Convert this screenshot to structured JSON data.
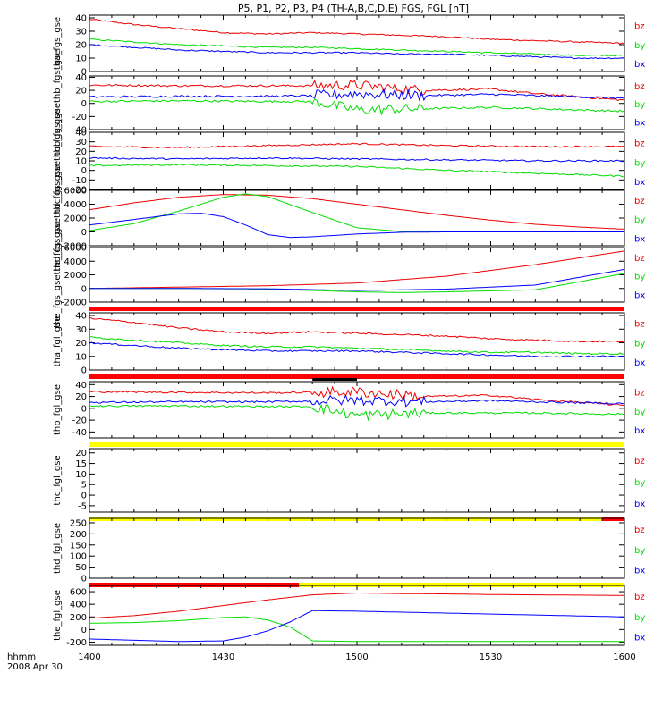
{
  "page": {
    "title": "P5, P1, P2, P3, P4 (TH-A,B,C,D,E) FGS, FGL [nT]",
    "time_axis_label": "hhmm",
    "date_label": "2008 Apr 30"
  },
  "colors": {
    "bx": "#0000ff",
    "by": "#00dd00",
    "bz": "#ee0000",
    "flag_red": "#ff0000",
    "flag_yellow": "#ffff00",
    "flag_black": "#000000"
  },
  "chart_data": {
    "type": "line",
    "x_ticks": [
      "1400",
      "1430",
      "1500",
      "1530",
      "1600"
    ],
    "x_range_minutes": [
      0,
      120
    ],
    "legend_labels": [
      "bz",
      "by",
      "bx"
    ],
    "panels": [
      {
        "id": "tha_fgs_gse",
        "ylabel": "tha_fgs_gse",
        "ylim": [
          0,
          42
        ],
        "ticks": [
          "40",
          "30",
          "20",
          "10",
          "0"
        ],
        "tick_values": [
          40,
          30,
          20,
          10,
          0
        ],
        "noise": 0.5,
        "flags": [],
        "series": [
          {
            "name": "bz",
            "x": [
              0,
              10,
              20,
              30,
              40,
              50,
              60,
              70,
              80,
              90,
              100,
              110,
              120
            ],
            "y": [
              39,
              35,
              32,
              29,
              28,
              29,
              28,
              27,
              26,
              24,
              23,
              22,
              21
            ]
          },
          {
            "name": "by",
            "x": [
              0,
              10,
              20,
              30,
              40,
              50,
              60,
              70,
              80,
              90,
              100,
              110,
              120
            ],
            "y": [
              24,
              22,
              20,
              19,
              18,
              18,
              17,
              16,
              15,
              14,
              13,
              12,
              12
            ]
          },
          {
            "name": "bx",
            "x": [
              0,
              10,
              20,
              30,
              40,
              50,
              60,
              70,
              80,
              90,
              100,
              110,
              120
            ],
            "y": [
              20,
              18,
              16,
              15,
              14,
              14,
              14,
              13,
              13,
              12,
              11,
              10,
              10
            ]
          }
        ]
      },
      {
        "id": "thb_fgs_gsethb_fgs_gse",
        "ylabel": "thb_fgs_gsethb_fgs_gse",
        "ylim": [
          -40,
          42
        ],
        "ticks": [
          "40",
          "20",
          "0",
          "-20",
          "-40"
        ],
        "tick_values": [
          40,
          20,
          0,
          -20,
          -40
        ],
        "noise": 1.5,
        "noisy_range": [
          50,
          75,
          8
        ],
        "flags": [],
        "series": [
          {
            "name": "bz",
            "x": [
              0,
              20,
              40,
              50,
              60,
              75,
              90,
              100,
              120
            ],
            "y": [
              28,
              27,
              27,
              27,
              28,
              20,
              22,
              15,
              5
            ]
          },
          {
            "name": "by",
            "x": [
              0,
              20,
              40,
              50,
              60,
              75,
              90,
              100,
              120
            ],
            "y": [
              3,
              4,
              3,
              3,
              -10,
              -8,
              -6,
              -8,
              -12
            ]
          },
          {
            "name": "bx",
            "x": [
              0,
              20,
              40,
              50,
              60,
              75,
              90,
              100,
              120
            ],
            "y": [
              10,
              11,
              11,
              12,
              15,
              12,
              14,
              12,
              8
            ]
          }
        ]
      },
      {
        "id": "thc_fgs_gsethc_fgs_gse",
        "ylabel": "thc_fgs_gsethc_fgs_gse",
        "ylim": [
          -20,
          40
        ],
        "ticks": [
          "40",
          "30",
          "20",
          "10",
          "0",
          "-10",
          "-20"
        ],
        "tick_values": [
          40,
          30,
          20,
          10,
          0,
          -10,
          -20
        ],
        "noise": 0.8,
        "flags": [],
        "series": [
          {
            "name": "bz",
            "x": [
              0,
              20,
              40,
              60,
              80,
              100,
              120
            ],
            "y": [
              25,
              24,
              26,
              28,
              26,
              25,
              25
            ]
          },
          {
            "name": "by",
            "x": [
              0,
              20,
              40,
              60,
              80,
              100,
              120
            ],
            "y": [
              5,
              6,
              5,
              4,
              0,
              -3,
              -6
            ]
          },
          {
            "name": "bx",
            "x": [
              0,
              20,
              40,
              60,
              80,
              100,
              120
            ],
            "y": [
              13,
              12,
              13,
              12,
              11,
              10,
              10
            ]
          }
        ]
      },
      {
        "id": "thd_fgs_gsethd_fgs_gse",
        "ylabel": "thd_fgs_gsethd_fgs_gse",
        "ylim": [
          -2000,
          6000
        ],
        "ticks": [
          "6000",
          "4000",
          "2000",
          "0",
          "-2000"
        ],
        "tick_values": [
          6000,
          4000,
          2000,
          0,
          -2000
        ],
        "noise": 0,
        "flags": [],
        "series": [
          {
            "name": "bz",
            "x": [
              0,
              10,
              20,
              30,
              40,
              50,
              60,
              70,
              80,
              90,
              100,
              110,
              120
            ],
            "y": [
              3200,
              4200,
              5000,
              5400,
              5300,
              4800,
              4000,
              3200,
              2400,
              1700,
              1100,
              700,
              400
            ]
          },
          {
            "name": "by",
            "x": [
              0,
              10,
              20,
              30,
              35,
              40,
              50,
              60,
              70,
              80
            ],
            "y": [
              200,
              1200,
              3000,
              5000,
              5500,
              5100,
              2800,
              600,
              50,
              0
            ]
          },
          {
            "name": "bx",
            "x": [
              0,
              10,
              20,
              25,
              30,
              35,
              40,
              45,
              50,
              60,
              70,
              80
            ],
            "y": [
              1000,
              1800,
              2600,
              2700,
              2200,
              1000,
              -400,
              -800,
              -700,
              -300,
              -50,
              0
            ]
          }
        ]
      },
      {
        "id": "the_fgs_gsethe_fgs_gse",
        "ylabel": "the_fgs_gsethe_fgs_gse",
        "ylim": [
          -2000,
          6000
        ],
        "ticks": [
          "6000",
          "4000",
          "2000",
          "0",
          "-2000"
        ],
        "tick_values": [
          6000,
          4000,
          2000,
          0,
          -2000
        ],
        "noise": 0,
        "flags": [
          {
            "color": "flag_red",
            "x": [
              0,
              120
            ]
          }
        ],
        "series": [
          {
            "name": "bz",
            "x": [
              0,
              20,
              40,
              60,
              80,
              100,
              120
            ],
            "y": [
              0,
              200,
              400,
              800,
              1800,
              3500,
              5500
            ]
          },
          {
            "name": "by",
            "x": [
              0,
              20,
              40,
              60,
              70,
              80,
              100,
              120
            ],
            "y": [
              0,
              0,
              -100,
              -500,
              -600,
              -500,
              -200,
              2200
            ]
          },
          {
            "name": "bx",
            "x": [
              0,
              20,
              40,
              60,
              70,
              80,
              100,
              120
            ],
            "y": [
              0,
              0,
              -50,
              -300,
              -200,
              -100,
              500,
              2800
            ]
          }
        ]
      },
      {
        "id": "tha_fgl_gse",
        "ylabel": "tha_fgl_gse",
        "ylim": [
          0,
          42
        ],
        "ticks": [
          "40",
          "30",
          "20",
          "10",
          "0"
        ],
        "tick_values": [
          40,
          30,
          20,
          10,
          0
        ],
        "noise": 0.6,
        "flags": [
          {
            "color": "flag_red",
            "x": [
              0,
              120
            ]
          }
        ],
        "series": [
          {
            "name": "bz",
            "x": [
              0,
              10,
              20,
              30,
              40,
              50,
              60,
              70,
              80,
              90,
              100,
              110,
              120
            ],
            "y": [
              38,
              35,
              31,
              28,
              27,
              28,
              27,
              26,
              25,
              23,
              22,
              21,
              21
            ]
          },
          {
            "name": "by",
            "x": [
              0,
              10,
              20,
              30,
              40,
              50,
              60,
              70,
              80,
              90,
              100,
              110,
              120
            ],
            "y": [
              24,
              22,
              20,
              18,
              17,
              17,
              16,
              15,
              14,
              13,
              13,
              12,
              12
            ]
          },
          {
            "name": "bx",
            "x": [
              0,
              10,
              20,
              30,
              40,
              50,
              60,
              70,
              80,
              90,
              100,
              110,
              120
            ],
            "y": [
              20,
              18,
              16,
              15,
              14,
              14,
              14,
              13,
              12,
              11,
              10,
              10,
              10
            ]
          }
        ]
      },
      {
        "id": "thb_fgl_gse",
        "ylabel": "thb_fgl_gse",
        "ylim": [
          -50,
          45
        ],
        "ticks": [
          "40",
          "20",
          "0",
          "-20",
          "-40"
        ],
        "tick_values": [
          40,
          20,
          0,
          -20,
          -40
        ],
        "noise": 1.5,
        "noisy_range": [
          50,
          75,
          9
        ],
        "flags": [
          {
            "color": "flag_yellow",
            "x": [
              0,
              120
            ]
          },
          {
            "color": "flag_black",
            "x": [
              50,
              60
            ],
            "top": true
          }
        ],
        "series": [
          {
            "name": "bz",
            "x": [
              0,
              20,
              40,
              50,
              60,
              75,
              90,
              100,
              120
            ],
            "y": [
              28,
              27,
              26,
              27,
              28,
              20,
              22,
              15,
              5
            ]
          },
          {
            "name": "by",
            "x": [
              0,
              20,
              40,
              50,
              60,
              75,
              90,
              100,
              120
            ],
            "y": [
              4,
              4,
              3,
              3,
              -12,
              -8,
              -8,
              -8,
              -10
            ]
          },
          {
            "name": "bx",
            "x": [
              0,
              20,
              40,
              50,
              60,
              75,
              90,
              100,
              120
            ],
            "y": [
              10,
              11,
              11,
              12,
              14,
              11,
              13,
              11,
              8
            ]
          }
        ]
      },
      {
        "id": "thc_fgl_gse",
        "ylabel": "thc_fgl_gse",
        "ylim": [
          -8,
          22
        ],
        "ticks": [
          "20",
          "15",
          "10",
          "5",
          "0",
          "-5"
        ],
        "tick_values": [
          20,
          15,
          10,
          5,
          0,
          -5
        ],
        "noise": 0,
        "flags": [
          {
            "color": "flag_yellow",
            "x": [
              0,
              115
            ]
          },
          {
            "color": "flag_red",
            "x": [
              115,
              120
            ]
          }
        ],
        "series": []
      },
      {
        "id": "thd_fgl_gse",
        "ylabel": "thd_fgl_gse",
        "ylim": [
          0,
          270
        ],
        "ticks": [
          "250",
          "200",
          "150",
          "100",
          "50",
          "0"
        ],
        "tick_values": [
          250,
          200,
          150,
          100,
          50,
          0
        ],
        "noise": 0,
        "flags": [
          {
            "color": "flag_red",
            "x": [
              0,
              47
            ]
          },
          {
            "color": "flag_yellow",
            "x": [
              47,
              120
            ]
          }
        ],
        "series": []
      },
      {
        "id": "the_fgl_gse",
        "ylabel": "the_fgl_gse",
        "ylim": [
          -250,
          700
        ],
        "ticks": [
          "600",
          "400",
          "200",
          "0",
          "-200"
        ],
        "tick_values": [
          600,
          400,
          200,
          0,
          -200
        ],
        "noise": 0,
        "flags": [],
        "series": [
          {
            "name": "bz",
            "x": [
              0,
              10,
              20,
              30,
              40,
              50,
              60,
              70,
              80,
              90,
              100,
              110,
              120
            ],
            "y": [
              180,
              220,
              290,
              380,
              470,
              550,
              580,
              570,
              565,
              555,
              550,
              545,
              540
            ]
          },
          {
            "name": "by",
            "x": [
              0,
              10,
              20,
              30,
              35,
              40,
              45,
              50,
              60,
              80,
              100,
              120
            ],
            "y": [
              100,
              110,
              140,
              190,
              200,
              150,
              40,
              -180,
              -190,
              -190,
              -190,
              -190
            ]
          },
          {
            "name": "bx",
            "x": [
              0,
              10,
              20,
              30,
              35,
              40,
              45,
              50,
              60,
              80,
              100,
              120
            ],
            "y": [
              -150,
              -170,
              -190,
              -180,
              -120,
              -20,
              120,
              300,
              290,
              260,
              230,
              200
            ]
          }
        ]
      }
    ]
  }
}
